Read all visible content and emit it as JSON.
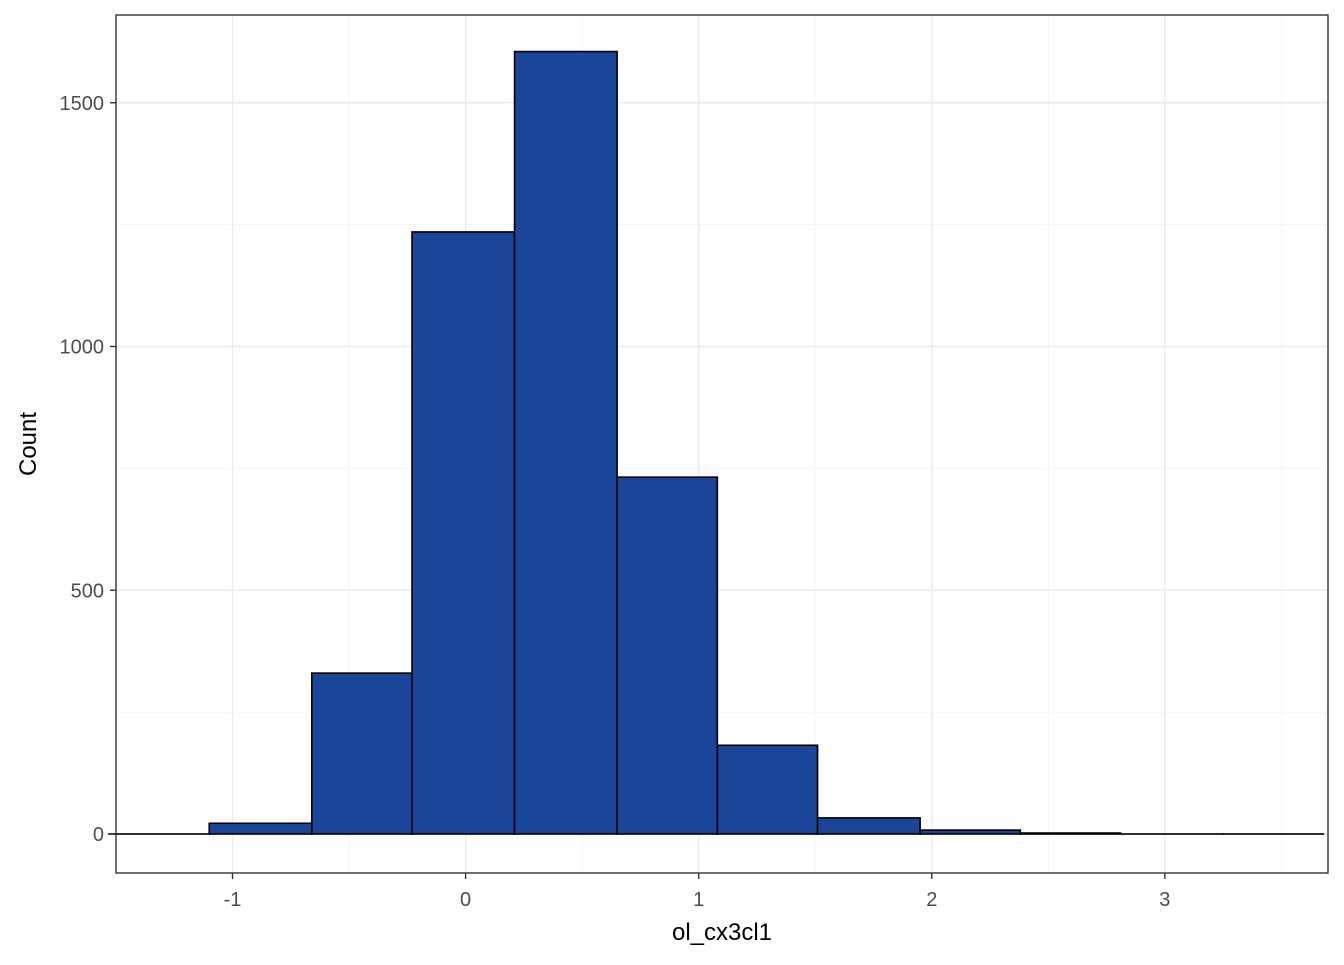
{
  "chart_data": {
    "type": "bar",
    "subtype": "histogram",
    "xlabel": "ol_cx3cl1",
    "ylabel": "Count",
    "xlim": [
      -1.5,
      3.7
    ],
    "ylim": [
      -80,
      1680
    ],
    "x_ticks": [
      -1,
      0,
      1,
      2,
      3
    ],
    "x_tick_labels": [
      "-1",
      "0",
      "1",
      "2",
      "3"
    ],
    "y_ticks": [
      0,
      500,
      1000,
      1500
    ],
    "y_tick_labels": [
      "0",
      "500",
      "1000",
      "1500"
    ],
    "x_minor_ticks": [
      -1.5,
      -0.5,
      0.5,
      1.5,
      2.5,
      3.5
    ],
    "y_minor_ticks": [
      250,
      750,
      1250
    ],
    "bins": [
      {
        "x0": -1.53,
        "x1": -1.1,
        "count": 0
      },
      {
        "x0": -1.1,
        "x1": -0.66,
        "count": 22
      },
      {
        "x0": -0.66,
        "x1": -0.23,
        "count": 330
      },
      {
        "x0": -0.23,
        "x1": 0.21,
        "count": 1235
      },
      {
        "x0": 0.21,
        "x1": 0.65,
        "count": 1605
      },
      {
        "x0": 0.65,
        "x1": 1.08,
        "count": 732
      },
      {
        "x0": 1.08,
        "x1": 1.51,
        "count": 182
      },
      {
        "x0": 1.51,
        "x1": 1.95,
        "count": 33
      },
      {
        "x0": 1.95,
        "x1": 2.38,
        "count": 8
      },
      {
        "x0": 2.38,
        "x1": 2.81,
        "count": 2
      },
      {
        "x0": 2.81,
        "x1": 3.25,
        "count": 0
      },
      {
        "x0": 3.25,
        "x1": 3.68,
        "count": 0
      }
    ],
    "grid": true,
    "legend": "none",
    "colors": {
      "bar_fill": "#1a4599",
      "bar_stroke": "#000000",
      "panel_background": "#ffffff",
      "grid": "#ebebeb",
      "tick_label": "#4d4d4d",
      "axis_title": "#000000"
    }
  }
}
